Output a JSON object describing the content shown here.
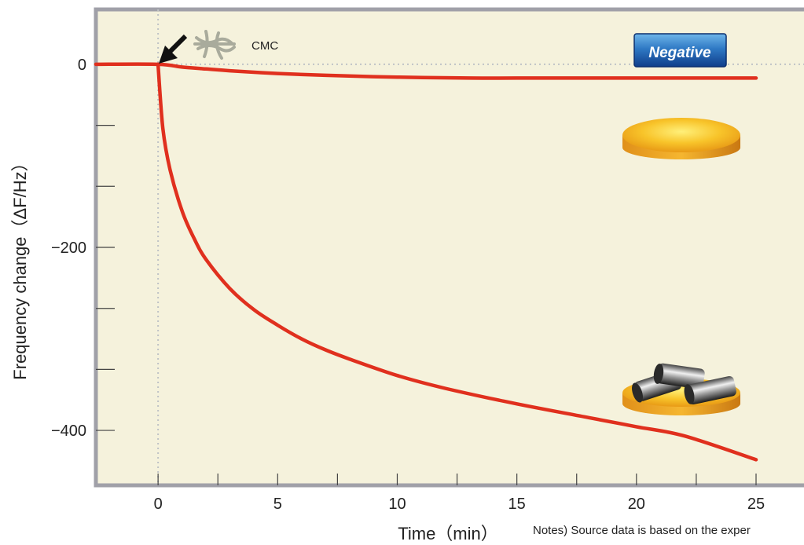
{
  "chart_data": {
    "type": "line",
    "xlabel": "Time（min）",
    "ylabel": "Frequency change（ΔF/Hz）",
    "xlim": [
      -2.6,
      27.3
    ],
    "ylim": [
      -460,
      60
    ],
    "x_ticks": [
      0,
      5,
      10,
      15,
      20,
      25
    ],
    "x_minor_ticks": [
      2.5,
      7.5,
      12.5,
      17.5,
      22.5
    ],
    "y_ticks": [
      0,
      -200,
      -400
    ],
    "y_minor_ticks": [
      -66.7,
      -133.3,
      -266.7,
      -333.3
    ],
    "grid": false,
    "reference_lines": {
      "x": 0,
      "y": 0,
      "style": "dotted"
    },
    "series": [
      {
        "color": "#e0301e",
        "x": [
          -2.6,
          0,
          1,
          2,
          3,
          5,
          7,
          10,
          13,
          15,
          18,
          20,
          23,
          25
        ],
        "y": [
          0,
          0,
          -3,
          -5,
          -7,
          -10,
          -12,
          -14,
          -15,
          -15,
          -15,
          -15,
          -15,
          -15
        ]
      },
      {
        "color": "#e0301e",
        "x": [
          0,
          0.2,
          0.5,
          1,
          1.5,
          2,
          3,
          4,
          5,
          6,
          7,
          8,
          10,
          12,
          15,
          18,
          20,
          22,
          25
        ],
        "y": [
          0,
          -70,
          -115,
          -160,
          -190,
          -213,
          -245,
          -268,
          -285,
          -300,
          -312,
          -322,
          -340,
          -354,
          -371,
          -386,
          -396,
          -406,
          -432
        ]
      }
    ],
    "annotations": {
      "cmc_label": "CMC",
      "badge_label": "Negative"
    }
  },
  "note": "Notes) Source data is based on the exper"
}
